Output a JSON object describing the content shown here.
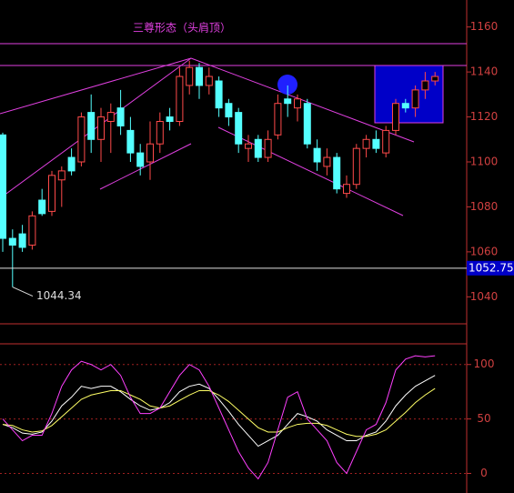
{
  "chart_data": [
    {
      "type": "candlestick",
      "title": "三尊形态（头肩顶）",
      "open": [
        1112,
        1066,
        1068,
        1063,
        1083,
        1078,
        1092,
        1102,
        1100,
        1122,
        1110,
        1118,
        1124,
        1114,
        1104,
        1100,
        1108,
        1120,
        1118,
        1134,
        1142,
        1134,
        1136,
        1126,
        1122,
        1106,
        1110,
        1102,
        1112,
        1128,
        1124,
        1126,
        1106,
        1098,
        1102,
        1086,
        1090,
        1106,
        1110,
        1104,
        1114,
        1126,
        1124,
        1132,
        1136
      ],
      "high": [
        1113,
        1070,
        1072,
        1078,
        1088,
        1096,
        1098,
        1106,
        1122,
        1130,
        1124,
        1126,
        1132,
        1120,
        1108,
        1118,
        1122,
        1124,
        1142,
        1145,
        1144,
        1142,
        1138,
        1128,
        1124,
        1112,
        1112,
        1114,
        1130,
        1134,
        1130,
        1128,
        1110,
        1106,
        1104,
        1094,
        1108,
        1112,
        1114,
        1116,
        1128,
        1128,
        1134,
        1140,
        1140
      ],
      "low": [
        1060,
        1044.34,
        1060,
        1061,
        1076,
        1076,
        1080,
        1094,
        1098,
        1104,
        1100,
        1104,
        1112,
        1100,
        1094,
        1092,
        1104,
        1114,
        1116,
        1130,
        1128,
        1130,
        1120,
        1116,
        1104,
        1100,
        1100,
        1100,
        1110,
        1120,
        1118,
        1106,
        1096,
        1094,
        1086,
        1084,
        1088,
        1102,
        1104,
        1102,
        1112,
        1122,
        1120,
        1128,
        1134
      ],
      "close": [
        1066,
        1063,
        1062,
        1076,
        1077,
        1094,
        1096,
        1096,
        1120,
        1110,
        1120,
        1122,
        1116,
        1104,
        1098,
        1108,
        1118,
        1118,
        1138,
        1142,
        1134,
        1138,
        1124,
        1120,
        1108,
        1108,
        1102,
        1110,
        1126,
        1126,
        1128,
        1108,
        1100,
        1102,
        1088,
        1090,
        1106,
        1110,
        1106,
        1114,
        1126,
        1124,
        1132,
        1136,
        1138
      ],
      "up_color": "#ff4a4a",
      "down_color": "#54ffff",
      "ylim": [
        1028,
        1172
      ],
      "yticks": [
        1040,
        1060,
        1080,
        1100,
        1120,
        1140,
        1160
      ],
      "last_price": 1052.75,
      "low_label": 1044.34
    },
    {
      "type": "line",
      "series": [
        {
          "color": "#ffffff",
          "values": [
            45,
            42,
            37,
            36,
            38,
            48,
            62,
            70,
            80,
            78,
            80,
            80,
            75,
            68,
            62,
            58,
            60,
            65,
            75,
            80,
            82,
            78,
            68,
            57,
            45,
            35,
            25,
            30,
            35,
            45,
            55,
            52,
            48,
            40,
            35,
            30,
            30,
            35,
            38,
            48,
            62,
            72,
            80,
            85,
            90
          ]
        },
        {
          "color": "#ffff66",
          "values": [
            45,
            44,
            40,
            38,
            39,
            44,
            52,
            60,
            68,
            72,
            74,
            76,
            76,
            72,
            68,
            62,
            60,
            62,
            67,
            72,
            76,
            76,
            72,
            66,
            58,
            50,
            42,
            38,
            38,
            42,
            45,
            46,
            46,
            44,
            40,
            36,
            34,
            34,
            36,
            40,
            48,
            56,
            65,
            72,
            78
          ]
        },
        {
          "color": "#ff40ff",
          "values": [
            50,
            40,
            30,
            35,
            35,
            55,
            80,
            95,
            103,
            100,
            95,
            100,
            90,
            70,
            55,
            55,
            60,
            75,
            90,
            100,
            95,
            80,
            60,
            40,
            20,
            5,
            -5,
            10,
            40,
            70,
            75,
            50,
            40,
            30,
            10,
            0,
            20,
            40,
            45,
            65,
            95,
            105,
            108,
            107,
            108
          ]
        }
      ],
      "ylim": [
        -18,
        119
      ],
      "yticks": [
        0,
        50,
        100
      ]
    }
  ]
}
